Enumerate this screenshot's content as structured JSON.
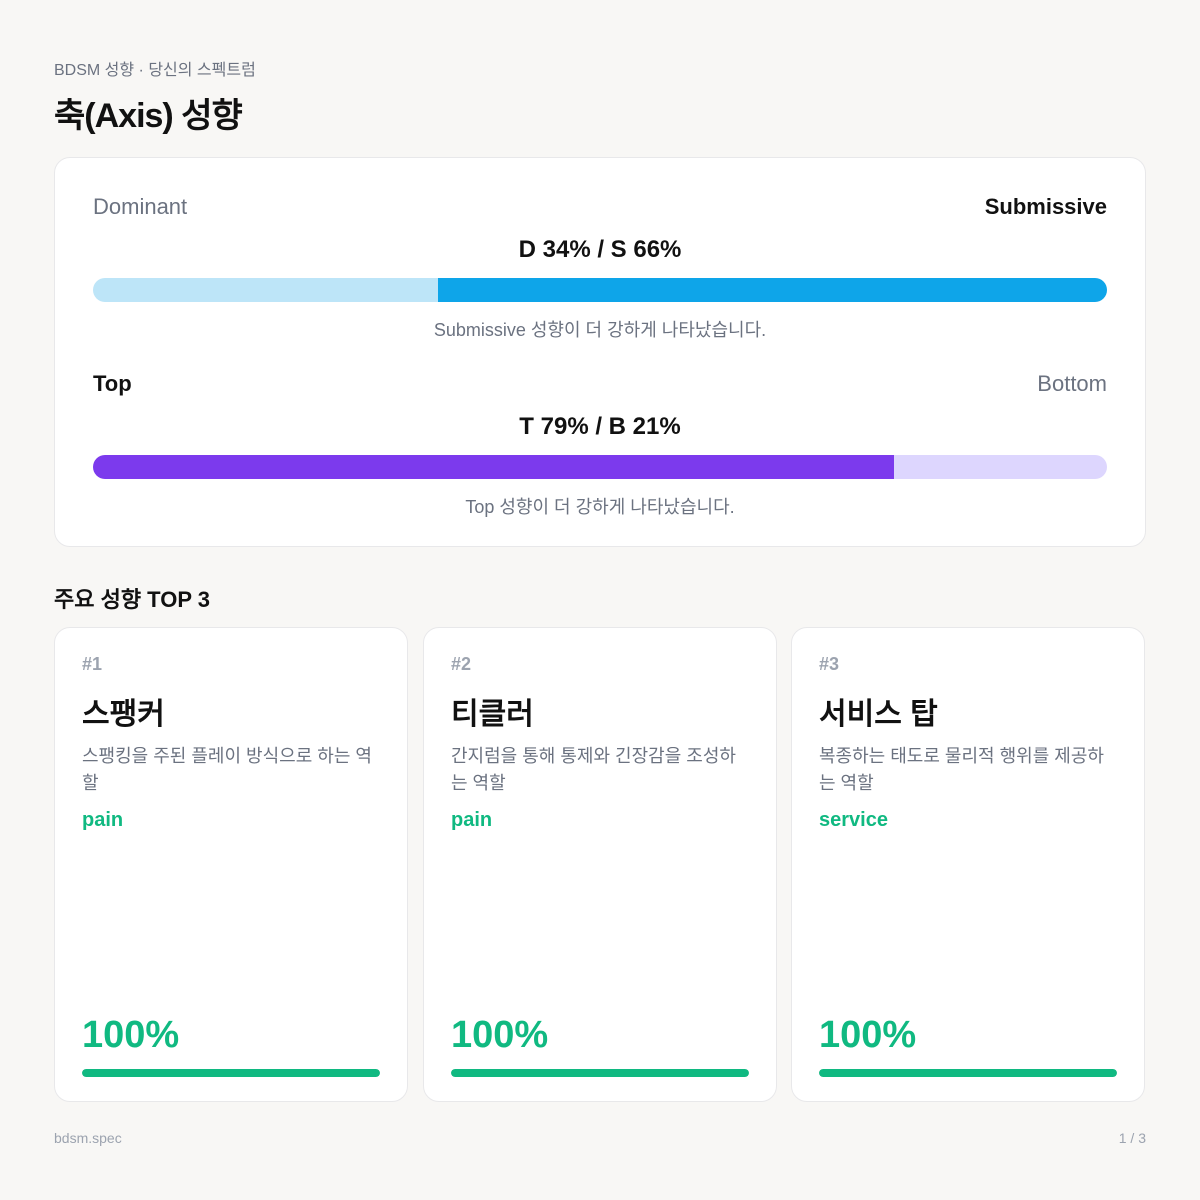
{
  "header": {
    "kicker": "BDSM 성향 · 당신의 스펙트럼",
    "title": "축(Axis) 성향"
  },
  "axes": [
    {
      "left_label": "Dominant",
      "right_label": "Submissive",
      "strong_side": "right",
      "summary": "D 34% / S 66%",
      "left_value": 34,
      "right_value": 66,
      "left_color": "#bde5f8",
      "right_color": "#0ea5e9",
      "note": "Submissive 성향이 더 강하게 나타났습니다."
    },
    {
      "left_label": "Top",
      "right_label": "Bottom",
      "strong_side": "left",
      "summary": "T 79% / B 21%",
      "left_value": 79,
      "right_value": 21,
      "left_color": "#7c3aed",
      "right_color": "#ddd6fe",
      "note": "Top 성향이 더 강하게 나타났습니다."
    }
  ],
  "top3": {
    "title": "주요 성향 TOP 3",
    "color": "#10b981",
    "items": [
      {
        "rank": "#1",
        "name": "스팽커",
        "description": "스팽킹을 주된 플레이 방식으로 하는 역할",
        "tag": "pain",
        "score_label": "100%",
        "score": 100
      },
      {
        "rank": "#2",
        "name": "티클러",
        "description": "간지럼을 통해 통제와 긴장감을 조성하는 역할",
        "tag": "pain",
        "score_label": "100%",
        "score": 100
      },
      {
        "rank": "#3",
        "name": "서비스 탑",
        "description": "복종하는 태도로 물리적 행위를 제공하는 역할",
        "tag": "service",
        "score_label": "100%",
        "score": 100
      }
    ]
  },
  "footer": {
    "brand": "bdsm.spec",
    "page": "1 / 3"
  }
}
